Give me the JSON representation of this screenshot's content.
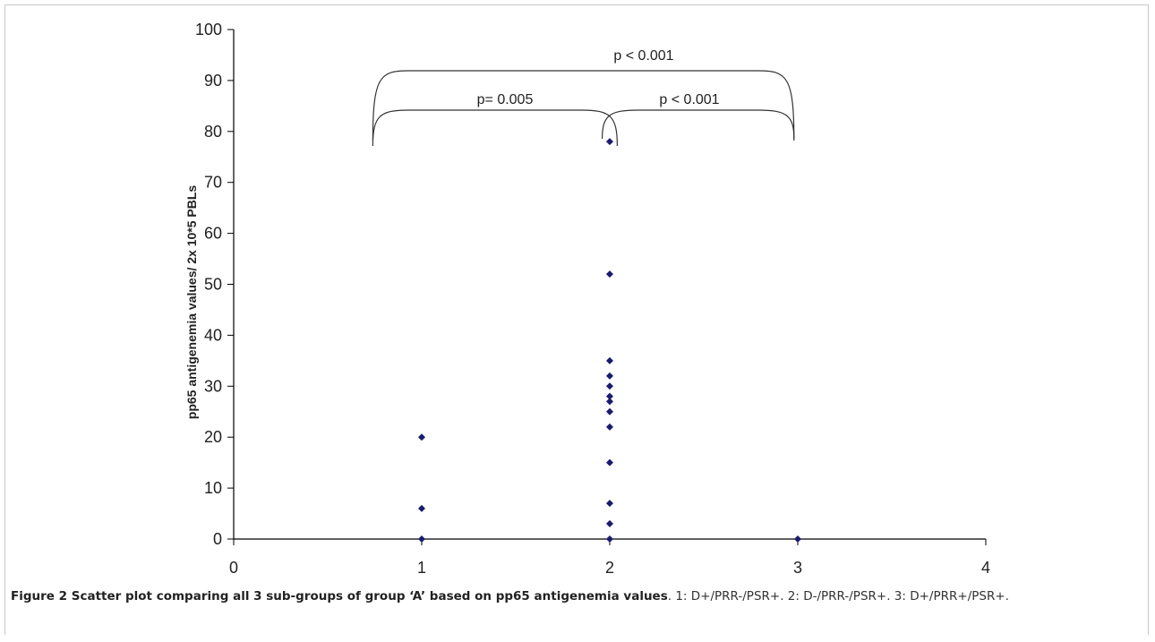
{
  "chart_data": {
    "type": "scatter",
    "title": "",
    "xlabel": "",
    "ylabel": "pp65 antigenemia values/ 2x 10*5 PBLs",
    "xlim": [
      0,
      4
    ],
    "ylim": [
      0,
      100
    ],
    "x_ticks": [
      "0",
      "1",
      "2",
      "3",
      "4"
    ],
    "y_ticks": [
      "0",
      "10",
      "20",
      "30",
      "40",
      "50",
      "60",
      "70",
      "80",
      "90",
      "100"
    ],
    "grid": false,
    "legend": "none",
    "marker_color": "#1a1a6e",
    "points": [
      {
        "x": 1,
        "y": 0
      },
      {
        "x": 1,
        "y": 6
      },
      {
        "x": 1,
        "y": 20
      },
      {
        "x": 2,
        "y": 0
      },
      {
        "x": 2,
        "y": 3
      },
      {
        "x": 2,
        "y": 7
      },
      {
        "x": 2,
        "y": 15
      },
      {
        "x": 2,
        "y": 22
      },
      {
        "x": 2,
        "y": 25
      },
      {
        "x": 2,
        "y": 27
      },
      {
        "x": 2,
        "y": 28
      },
      {
        "x": 2,
        "y": 30
      },
      {
        "x": 2,
        "y": 32
      },
      {
        "x": 2,
        "y": 35
      },
      {
        "x": 2,
        "y": 52
      },
      {
        "x": 2,
        "y": 78
      },
      {
        "x": 3,
        "y": 0
      }
    ],
    "annotations": [
      {
        "text": "p= 0.005",
        "from": 1,
        "to": 2
      },
      {
        "text": "p < 0.001",
        "from": 2,
        "to": 3
      },
      {
        "text": "p < 0.001",
        "from": 1,
        "to": 3
      }
    ]
  },
  "caption": {
    "label": "Figure 2 Scatter plot comparing all 3 sub-groups of group ‘A’ based on pp65 antigenemia values",
    "text": ". 1: D+/PRR-/PSR+. 2: D-/PRR-/PSR+. 3: D+/PRR+/PSR+."
  }
}
